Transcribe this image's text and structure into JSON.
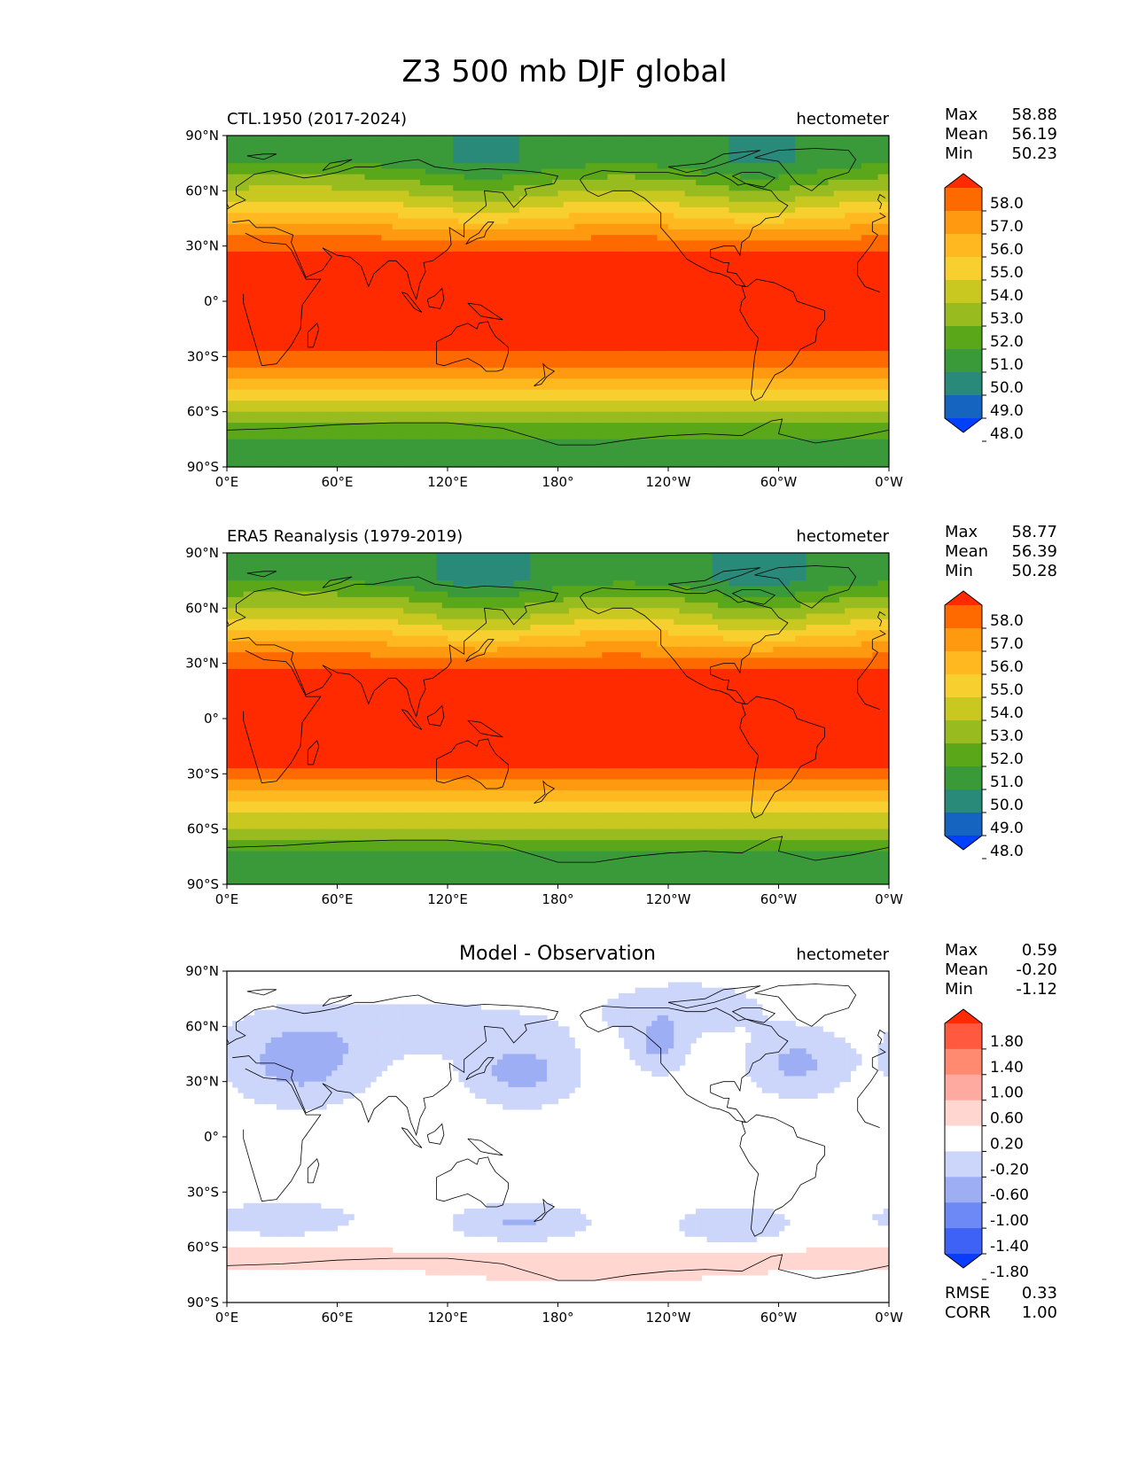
{
  "title": "Z3 500 mb DJF global",
  "lat_ticks": [
    "90°N",
    "60°N",
    "30°N",
    "0°",
    "30°S",
    "60°S",
    "90°S"
  ],
  "lon_ticks": [
    "0°E",
    "60°E",
    "120°E",
    "180°",
    "120°W",
    "60°W",
    "0°W"
  ],
  "stat_labels": {
    "max": "Max",
    "mean": "Mean",
    "min": "Min",
    "rmse": "RMSE",
    "corr": "CORR"
  },
  "panels": [
    {
      "title_left": "CTL.1950 (2017-2024)",
      "title_center": "",
      "units": "hectometer",
      "stats": {
        "max": "58.88",
        "mean": "56.19",
        "min": "50.23"
      },
      "colorbar": {
        "labels": [
          "58.0",
          "57.0",
          "56.0",
          "55.0",
          "54.0",
          "53.0",
          "52.0",
          "51.0",
          "50.0",
          "49.0",
          "48.0"
        ],
        "colors": [
          "#ff2a00",
          "#ff6a00",
          "#ff9a10",
          "#ffb820",
          "#f7d030",
          "#c8c820",
          "#98bc20",
          "#5aa81a",
          "#3a9a3a",
          "#2a8a7a",
          "#1565c0",
          "#0040ff"
        ]
      },
      "field": {
        "north_min_lat": 75,
        "north_value": 51.0,
        "trough_lons": [
          140,
          290
        ],
        "trough_depth": 1.2,
        "south_min_lat": -75,
        "south_value": 50.8
      }
    },
    {
      "title_left": "ERA5 Reanalysis (1979-2019)",
      "title_center": "",
      "units": "hectometer",
      "stats": {
        "max": "58.77",
        "mean": "56.39",
        "min": "50.28"
      },
      "colorbar": {
        "labels": [
          "58.0",
          "57.0",
          "56.0",
          "55.0",
          "54.0",
          "53.0",
          "52.0",
          "51.0",
          "50.0",
          "49.0",
          "48.0"
        ],
        "colors": [
          "#ff2a00",
          "#ff6a00",
          "#ff9a10",
          "#ffb820",
          "#f7d030",
          "#c8c820",
          "#98bc20",
          "#5aa81a",
          "#3a9a3a",
          "#2a8a7a",
          "#1565c0",
          "#0040ff"
        ]
      },
      "field": {
        "north_min_lat": 75,
        "north_value": 50.9,
        "trough_lons": [
          140,
          290
        ],
        "trough_depth": 1.3,
        "south_min_lat": -75,
        "south_value": 50.3
      }
    },
    {
      "title_left": "",
      "title_center": "Model - Observation",
      "units": "hectometer",
      "stats": {
        "max": "0.59",
        "mean": "-0.20",
        "min": "-1.12",
        "rmse": "0.33",
        "corr": "1.00"
      },
      "colorbar": {
        "labels": [
          "1.80",
          "1.40",
          "1.00",
          "0.60",
          "0.20",
          "-0.20",
          "-0.60",
          "-1.00",
          "-1.40",
          "-1.80"
        ],
        "colors": [
          "#ff2a00",
          "#ff5a40",
          "#ff8a70",
          "#ffaaa0",
          "#ffd6d0",
          "#ffffff",
          "#ccd5fa",
          "#9eaef5",
          "#6d89f5",
          "#3d62f5",
          "#0a3cff"
        ]
      },
      "field": {
        "diff": true
      }
    }
  ]
}
